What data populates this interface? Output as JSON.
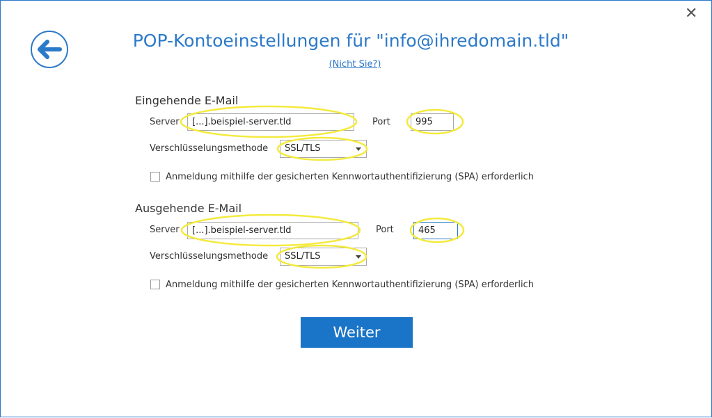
{
  "header": {
    "title": "POP-Kontoeinstellungen für \"info@ihredomain.tld\"",
    "link": "(Nicht Sie?)"
  },
  "incoming": {
    "heading": "Eingehende E-Mail",
    "server_label": "Server",
    "server": "[...].beispiel-server.tld",
    "port_label": "Port",
    "port": "995",
    "encryption_label": "Verschlüsselungsmethode",
    "encryption": "SSL/TLS",
    "spa_label": "Anmeldung mithilfe der gesicherten Kennwortauthentifizierung (SPA) erforderlich"
  },
  "outgoing": {
    "heading": "Ausgehende E-Mail",
    "server_label": "Server",
    "server": "[...].beispiel-server.tld",
    "port_label": "Port",
    "port": "465",
    "encryption_label": "Verschlüsselungsmethode",
    "encryption": "SSL/TLS",
    "spa_label": "Anmeldung mithilfe der gesicherten Kennwortauthentifizierung (SPA) erforderlich"
  },
  "button": "Weiter"
}
